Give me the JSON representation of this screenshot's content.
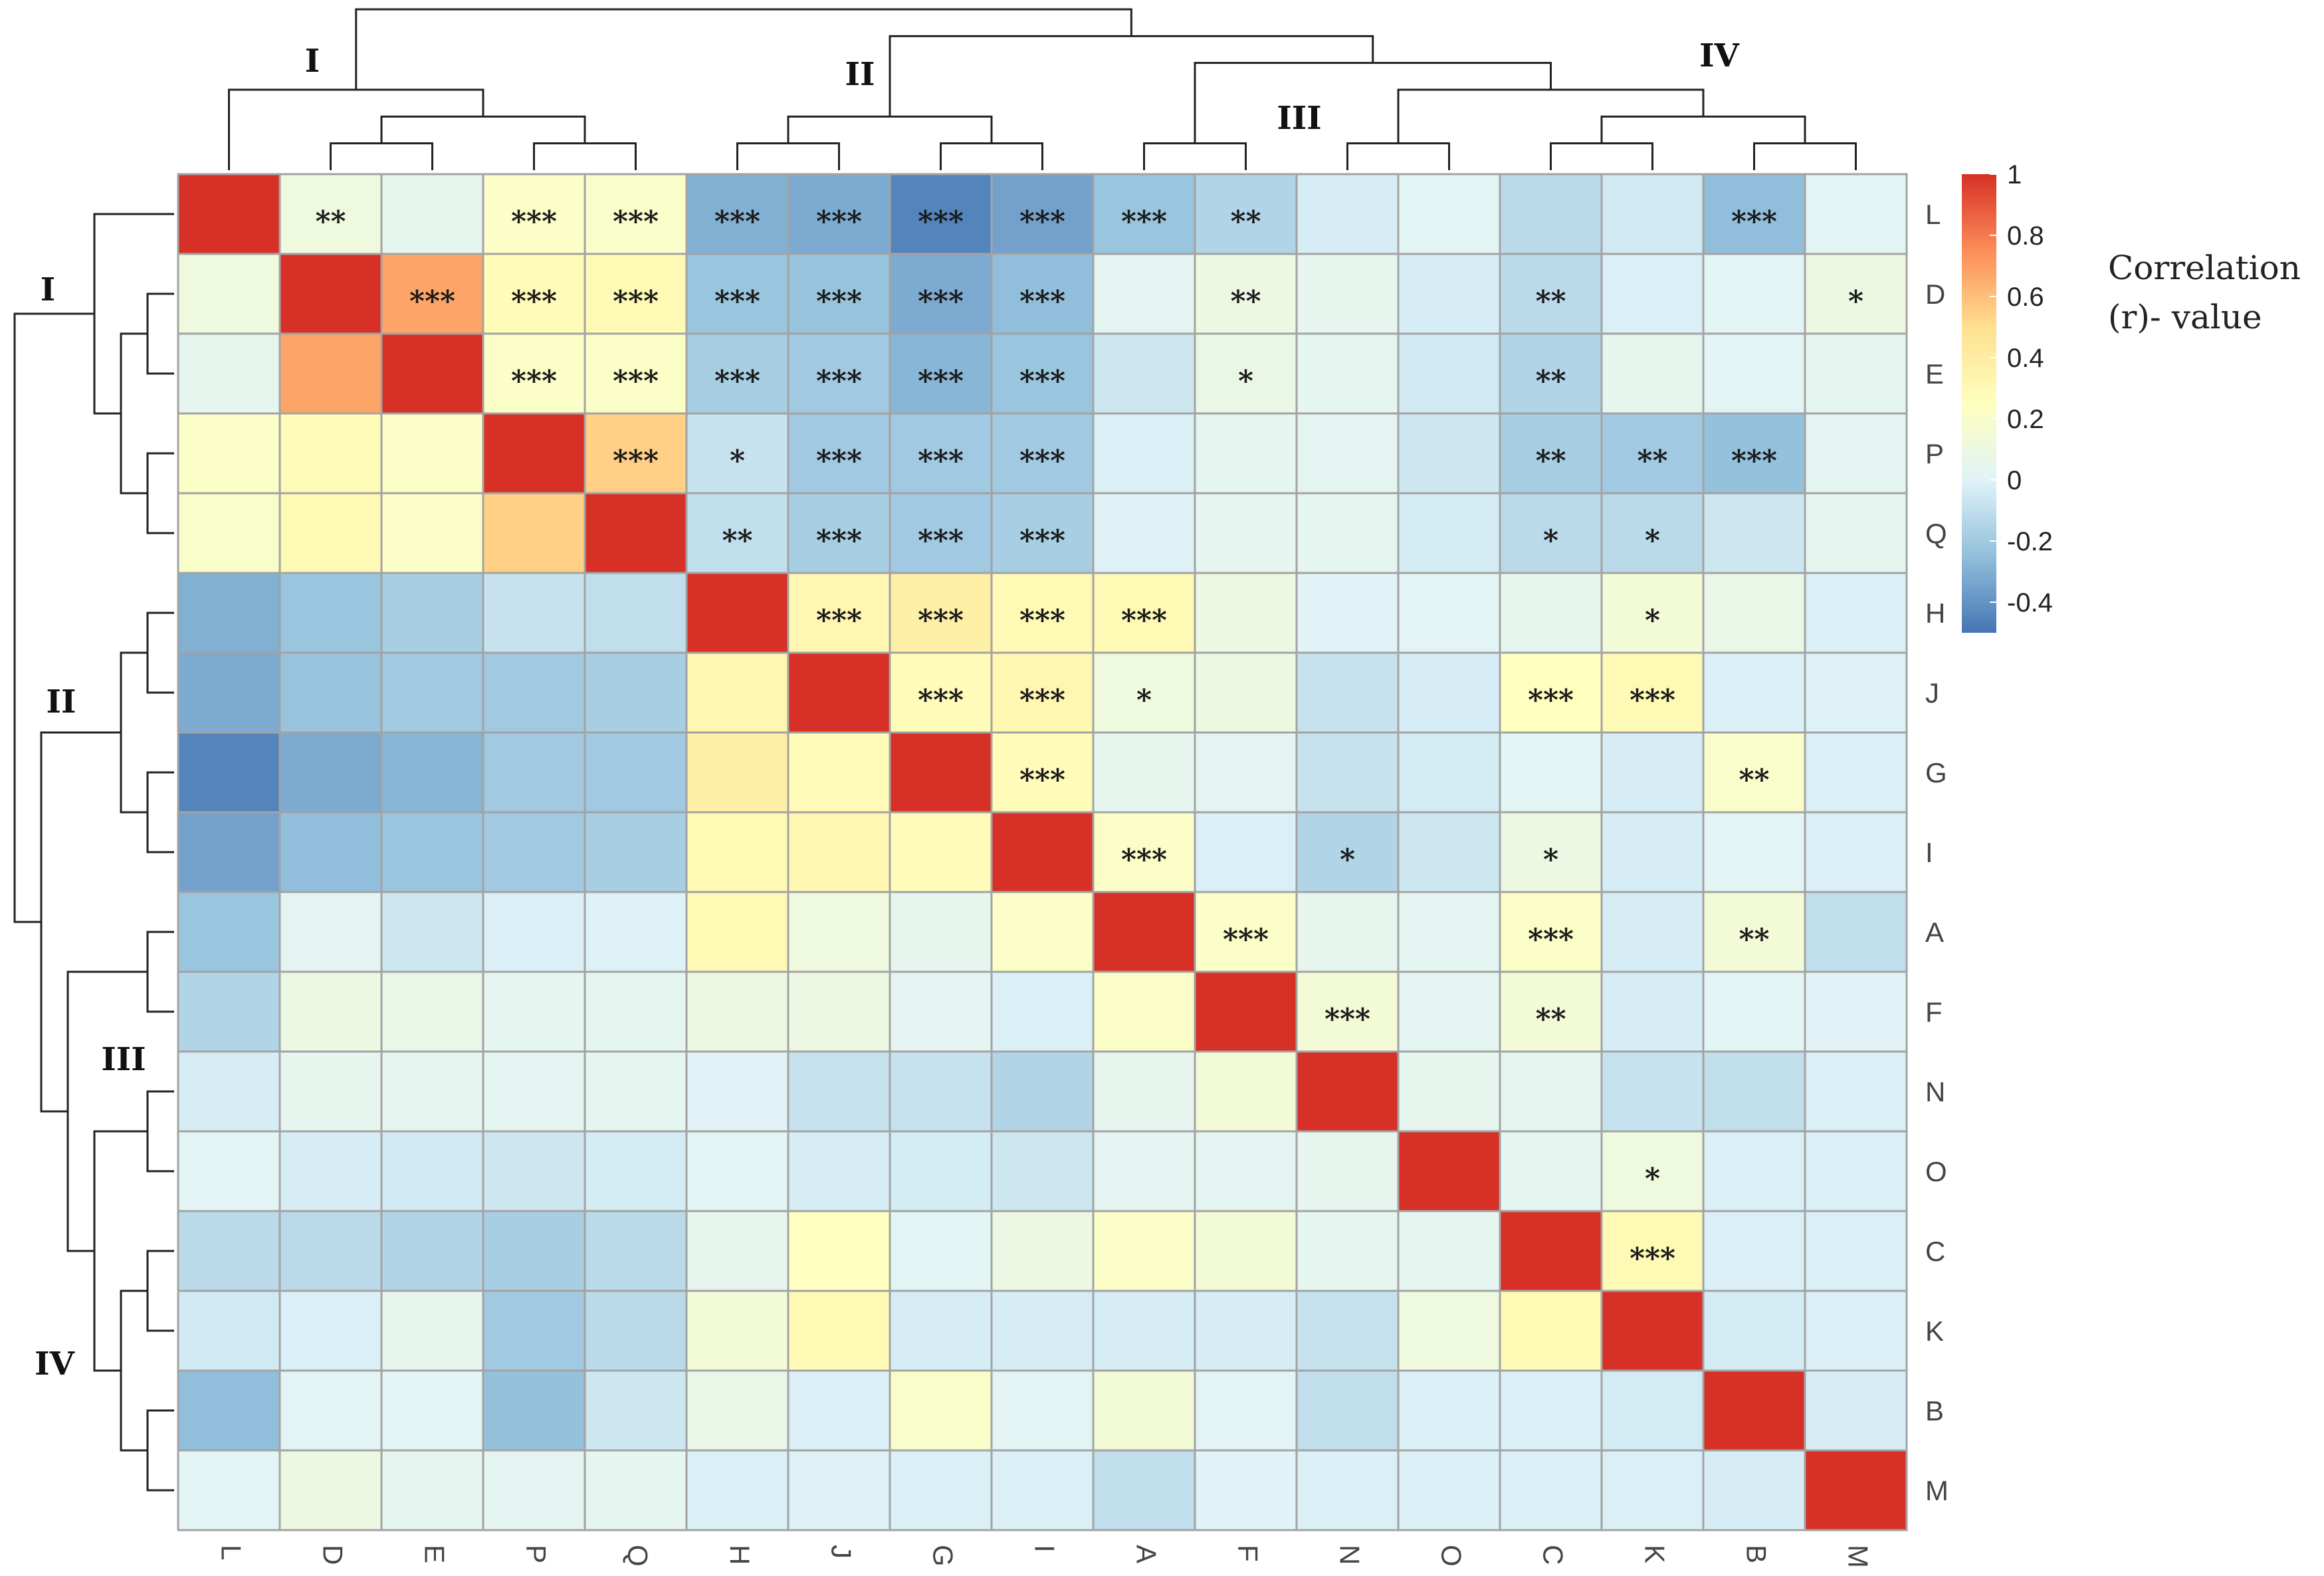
{
  "chart_data": {
    "type": "heatmap",
    "title": "",
    "variables": [
      "L",
      "D",
      "E",
      "P",
      "Q",
      "H",
      "J",
      "G",
      "I",
      "A",
      "F",
      "N",
      "O",
      "C",
      "K",
      "B",
      "M"
    ],
    "values": [
      [
        1.0,
        0.12,
        0.05,
        0.22,
        0.2,
        -0.3,
        -0.32,
        -0.45,
        -0.35,
        -0.22,
        -0.15,
        -0.03,
        0.02,
        -0.12,
        -0.05,
        -0.25,
        0.02
      ],
      [
        0.12,
        1.0,
        0.68,
        0.28,
        0.3,
        -0.22,
        -0.23,
        -0.32,
        -0.25,
        0.03,
        0.1,
        0.05,
        -0.03,
        -0.12,
        -0.02,
        0.02,
        0.1
      ],
      [
        0.05,
        0.68,
        1.0,
        0.22,
        0.22,
        -0.18,
        -0.2,
        -0.28,
        -0.22,
        -0.06,
        0.08,
        0.04,
        -0.05,
        -0.15,
        0.05,
        0.02,
        0.04
      ],
      [
        0.22,
        0.28,
        0.22,
        1.0,
        0.55,
        -0.08,
        -0.2,
        -0.2,
        -0.2,
        -0.02,
        0.04,
        0.03,
        -0.06,
        -0.18,
        -0.2,
        -0.24,
        0.03
      ],
      [
        0.2,
        0.3,
        0.22,
        0.55,
        1.0,
        -0.1,
        -0.18,
        -0.2,
        -0.18,
        -0.01,
        0.04,
        0.04,
        -0.04,
        -0.12,
        -0.12,
        -0.06,
        0.04
      ],
      [
        -0.3,
        -0.22,
        -0.18,
        -0.08,
        -0.1,
        1.0,
        0.32,
        0.38,
        0.3,
        0.3,
        0.1,
        0.01,
        0.02,
        0.05,
        0.15,
        0.07,
        -0.02
      ],
      [
        -0.32,
        -0.23,
        -0.2,
        -0.2,
        -0.18,
        0.32,
        1.0,
        0.28,
        0.32,
        0.12,
        0.1,
        -0.08,
        -0.03,
        0.25,
        0.3,
        -0.02,
        -0.01
      ],
      [
        -0.45,
        -0.32,
        -0.28,
        -0.2,
        -0.2,
        0.38,
        0.28,
        1.0,
        0.28,
        0.05,
        0.03,
        -0.08,
        -0.04,
        0.02,
        -0.03,
        0.2,
        -0.02
      ],
      [
        -0.35,
        -0.25,
        -0.22,
        -0.2,
        -0.18,
        0.3,
        0.32,
        0.28,
        1.0,
        0.22,
        -0.02,
        -0.15,
        -0.06,
        0.1,
        -0.03,
        0.02,
        -0.02
      ],
      [
        -0.22,
        0.03,
        -0.06,
        -0.02,
        -0.01,
        0.3,
        0.12,
        0.05,
        0.22,
        1.0,
        0.22,
        0.05,
        0.03,
        0.22,
        -0.03,
        0.15,
        -0.1
      ],
      [
        -0.15,
        0.1,
        0.08,
        0.04,
        0.04,
        0.1,
        0.1,
        0.03,
        -0.02,
        0.22,
        1.0,
        0.15,
        0.03,
        0.15,
        -0.03,
        0.02,
        0.01
      ],
      [
        -0.03,
        0.05,
        0.04,
        0.03,
        0.04,
        0.01,
        -0.08,
        -0.08,
        -0.15,
        0.05,
        0.15,
        1.0,
        0.05,
        0.04,
        -0.08,
        -0.1,
        -0.02
      ],
      [
        0.02,
        -0.03,
        -0.05,
        -0.06,
        -0.04,
        0.02,
        -0.03,
        -0.04,
        -0.06,
        0.03,
        0.03,
        0.05,
        1.0,
        0.04,
        0.12,
        -0.02,
        -0.02
      ],
      [
        -0.12,
        -0.12,
        -0.15,
        -0.18,
        -0.12,
        0.05,
        0.25,
        0.02,
        0.1,
        0.22,
        0.15,
        0.04,
        0.04,
        1.0,
        0.3,
        -0.02,
        -0.02
      ],
      [
        -0.05,
        -0.02,
        0.05,
        -0.2,
        -0.12,
        0.15,
        0.3,
        -0.03,
        -0.03,
        -0.03,
        -0.03,
        -0.08,
        0.12,
        0.3,
        1.0,
        -0.04,
        -0.02
      ],
      [
        -0.25,
        0.02,
        0.02,
        -0.24,
        -0.06,
        0.07,
        -0.02,
        0.2,
        0.02,
        0.15,
        0.02,
        -0.1,
        -0.02,
        -0.02,
        -0.04,
        1.0,
        -0.03
      ],
      [
        0.02,
        0.1,
        0.04,
        0.03,
        0.04,
        -0.02,
        -0.01,
        -0.02,
        -0.02,
        -0.1,
        0.01,
        -0.02,
        -0.02,
        -0.02,
        -0.02,
        -0.03,
        1.0
      ]
    ],
    "significance": [
      [
        "",
        "**",
        "",
        "***",
        "***",
        "***",
        "***",
        "***",
        "***",
        "***",
        "**",
        "",
        "",
        "",
        "",
        "***",
        ""
      ],
      [
        "",
        "",
        "***",
        "***",
        "***",
        "***",
        "***",
        "***",
        "***",
        "",
        "**",
        "",
        "",
        "**",
        "",
        "",
        "*"
      ],
      [
        "",
        "",
        "",
        "***",
        "***",
        "***",
        "***",
        "***",
        "***",
        "",
        "*",
        "",
        "",
        "**",
        "",
        "",
        ""
      ],
      [
        "",
        "",
        "",
        "",
        "***",
        "*",
        "***",
        "***",
        "***",
        "",
        "",
        "",
        "",
        "**",
        "**",
        "***",
        ""
      ],
      [
        "",
        "",
        "",
        "",
        "",
        "**",
        "***",
        "***",
        "***",
        "",
        "",
        "",
        "",
        "*",
        "*",
        "",
        ""
      ],
      [
        "",
        "",
        "",
        "",
        "",
        "",
        "***",
        "***",
        "***",
        "***",
        "",
        "",
        "",
        "",
        "*",
        "",
        ""
      ],
      [
        "",
        "",
        "",
        "",
        "",
        "",
        "",
        "***",
        "***",
        "*",
        "",
        "",
        "",
        "***",
        "***",
        "",
        ""
      ],
      [
        "",
        "",
        "",
        "",
        "",
        "",
        "",
        "",
        "***",
        "",
        "",
        "",
        "",
        "",
        "",
        "**",
        ""
      ],
      [
        "",
        "",
        "",
        "",
        "",
        "",
        "",
        "",
        "",
        "***",
        "",
        "*",
        "",
        "*",
        "",
        "",
        ""
      ],
      [
        "",
        "",
        "",
        "",
        "",
        "",
        "",
        "",
        "",
        "",
        "***",
        "",
        "",
        "***",
        "",
        "**",
        ""
      ],
      [
        "",
        "",
        "",
        "",
        "",
        "",
        "",
        "",
        "",
        "",
        "",
        "***",
        "",
        "**",
        "",
        "",
        ""
      ],
      [
        "",
        "",
        "",
        "",
        "",
        "",
        "",
        "",
        "",
        "",
        "",
        "",
        "",
        "",
        "",
        "",
        ""
      ],
      [
        "",
        "",
        "",
        "",
        "",
        "",
        "",
        "",
        "",
        "",
        "",
        "",
        "",
        "",
        "*",
        "",
        ""
      ],
      [
        "",
        "",
        "",
        "",
        "",
        "",
        "",
        "",
        "",
        "",
        "",
        "",
        "",
        "",
        "***",
        "",
        ""
      ],
      [
        "",
        "",
        "",
        "",
        "",
        "",
        "",
        "",
        "",
        "",
        "",
        "",
        "",
        "",
        "",
        "",
        ""
      ],
      [
        "",
        "",
        "",
        "",
        "",
        "",
        "",
        "",
        "",
        "",
        "",
        "",
        "",
        "",
        "",
        "",
        ""
      ],
      [
        "",
        "",
        "",
        "",
        "",
        "",
        "",
        "",
        "",
        "",
        "",
        "",
        "",
        "",
        "",
        "",
        ""
      ]
    ],
    "clusters": [
      "I",
      "II",
      "III",
      "IV"
    ],
    "colorbar": {
      "min": -0.5,
      "max": 1.0,
      "ticks": [
        "1",
        "0.8",
        "0.6",
        "0.4",
        "0.2",
        "0",
        "-0.2",
        "-0.4"
      ],
      "tick_values": [
        1.0,
        0.8,
        0.6,
        0.4,
        0.2,
        0.0,
        -0.2,
        -0.4
      ],
      "colors": [
        "#4575b4",
        "#91bfdb",
        "#e0f3f8",
        "#ffffbf",
        "#fee090",
        "#fc8d59",
        "#d73027"
      ]
    },
    "legend_title": [
      "Correlation",
      "(r)- value"
    ],
    "legend_position": "right"
  }
}
